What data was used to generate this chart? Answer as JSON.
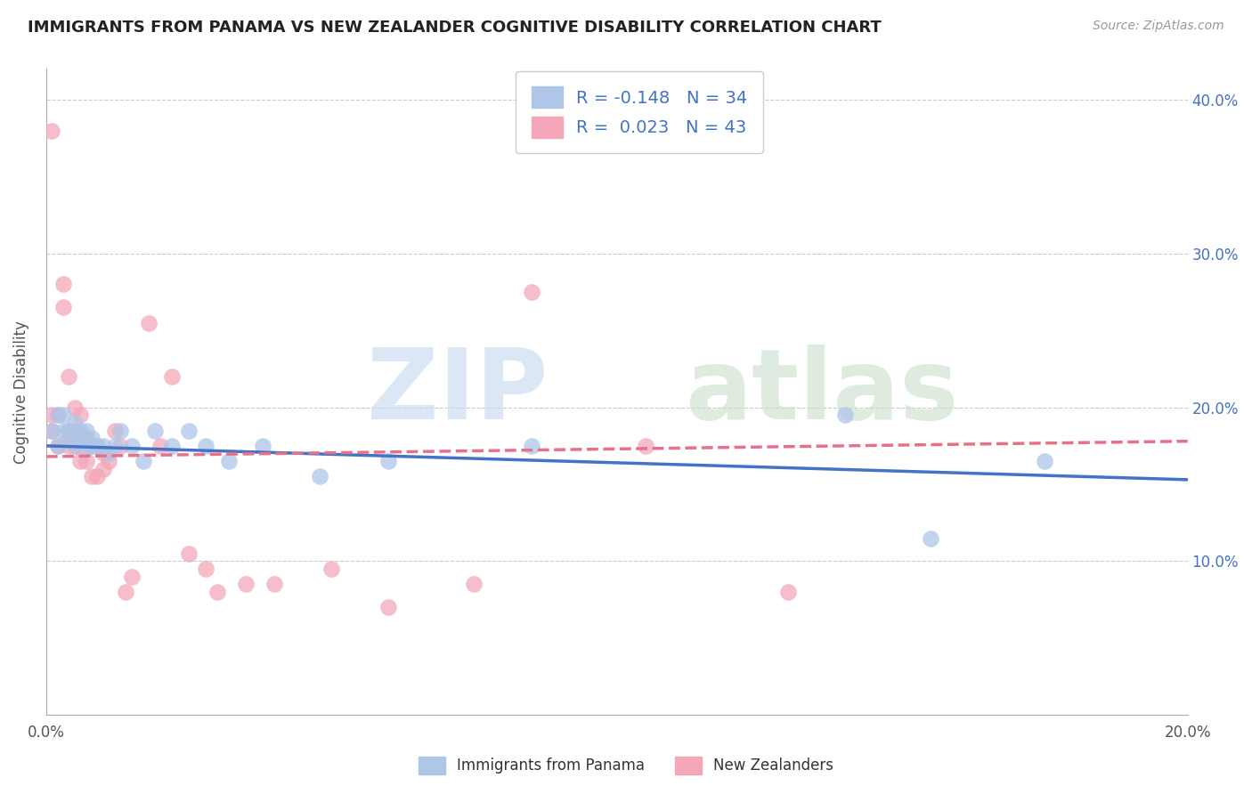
{
  "title": "IMMIGRANTS FROM PANAMA VS NEW ZEALANDER COGNITIVE DISABILITY CORRELATION CHART",
  "source": "Source: ZipAtlas.com",
  "ylabel": "Cognitive Disability",
  "xlim": [
    0.0,
    0.2
  ],
  "ylim": [
    0.0,
    0.42
  ],
  "xticks": [
    0.0,
    0.04,
    0.08,
    0.12,
    0.16,
    0.2
  ],
  "yticks": [
    0.0,
    0.1,
    0.2,
    0.3,
    0.4
  ],
  "xticklabels": [
    "0.0%",
    "",
    "",
    "",
    "",
    "20.0%"
  ],
  "yticklabels_right": [
    "",
    "10.0%",
    "20.0%",
    "30.0%",
    "40.0%"
  ],
  "blue_R": -0.148,
  "blue_N": 34,
  "pink_R": 0.023,
  "pink_N": 43,
  "blue_color": "#aec6e8",
  "pink_color": "#f4a7b9",
  "blue_line_color": "#4472c4",
  "pink_line_color": "#e8718a",
  "legend_label1": "Immigrants from Panama",
  "legend_label2": "New Zealanders",
  "blue_points_x": [
    0.001,
    0.002,
    0.002,
    0.003,
    0.003,
    0.004,
    0.004,
    0.005,
    0.005,
    0.006,
    0.006,
    0.007,
    0.007,
    0.008,
    0.008,
    0.009,
    0.01,
    0.011,
    0.012,
    0.013,
    0.015,
    0.017,
    0.019,
    0.022,
    0.025,
    0.028,
    0.032,
    0.038,
    0.048,
    0.06,
    0.085,
    0.14,
    0.155,
    0.175
  ],
  "blue_points_y": [
    0.185,
    0.195,
    0.175,
    0.185,
    0.195,
    0.18,
    0.185,
    0.19,
    0.175,
    0.18,
    0.185,
    0.175,
    0.185,
    0.175,
    0.18,
    0.175,
    0.175,
    0.17,
    0.175,
    0.185,
    0.175,
    0.165,
    0.185,
    0.175,
    0.185,
    0.175,
    0.165,
    0.175,
    0.155,
    0.165,
    0.175,
    0.195,
    0.115,
    0.165
  ],
  "pink_points_x": [
    0.001,
    0.001,
    0.001,
    0.002,
    0.002,
    0.003,
    0.003,
    0.004,
    0.004,
    0.004,
    0.005,
    0.005,
    0.005,
    0.006,
    0.006,
    0.006,
    0.007,
    0.007,
    0.008,
    0.008,
    0.009,
    0.009,
    0.01,
    0.01,
    0.011,
    0.012,
    0.013,
    0.014,
    0.015,
    0.018,
    0.02,
    0.022,
    0.025,
    0.028,
    0.03,
    0.035,
    0.04,
    0.05,
    0.06,
    0.075,
    0.085,
    0.105,
    0.13
  ],
  "pink_points_y": [
    0.185,
    0.195,
    0.38,
    0.175,
    0.195,
    0.265,
    0.28,
    0.22,
    0.185,
    0.175,
    0.2,
    0.175,
    0.185,
    0.195,
    0.175,
    0.165,
    0.18,
    0.165,
    0.175,
    0.155,
    0.175,
    0.155,
    0.17,
    0.16,
    0.165,
    0.185,
    0.175,
    0.08,
    0.09,
    0.255,
    0.175,
    0.22,
    0.105,
    0.095,
    0.08,
    0.085,
    0.085,
    0.095,
    0.07,
    0.085,
    0.275,
    0.175,
    0.08
  ],
  "blue_line_x0": 0.0,
  "blue_line_y0": 0.175,
  "blue_line_x1": 0.2,
  "blue_line_y1": 0.153,
  "pink_line_x0": 0.0,
  "pink_line_y0": 0.168,
  "pink_line_x1": 0.2,
  "pink_line_y1": 0.178
}
